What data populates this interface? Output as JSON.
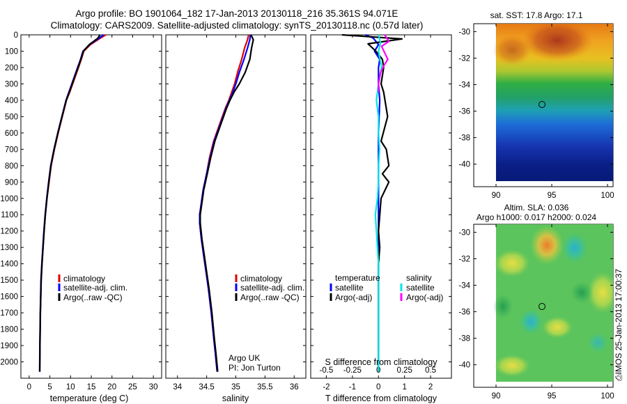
{
  "title": {
    "line1": "Argo profile: BO 1901064_182 17-Jan-2013 20130118_216 35.361S 94.071E",
    "line2": "Climatology: CARS2009. Satellite-adjusted climatology: synTS_20130118.nc (0.57d later)"
  },
  "credit": "Argo UK",
  "pi": "PI: Jon Turton",
  "timestamp": "⎙IMOS 25-Jan-2013 17:00:37",
  "colors": {
    "climatology": "#e00000",
    "satellite": "#0000ff",
    "argo": "#000000",
    "sal_satellite": "#00e5e5",
    "sal_argo": "#ff00ff"
  },
  "map_sst": {
    "title": "sat. SST: 17.8 Argo: 17.1",
    "xticks": [
      "90",
      "95",
      "100"
    ],
    "yticks": [
      "-30",
      "-32",
      "-34",
      "-36",
      "-38",
      "-40"
    ]
  },
  "map_sla": {
    "title_line1": "Altim. SLA: 0.036",
    "title_line2": "Argo h1000: 0.017 h2000: 0.024",
    "xticks": [
      "90",
      "95",
      "100"
    ],
    "yticks": [
      "-30",
      "-32",
      "-34",
      "-36",
      "-38",
      "-40"
    ]
  },
  "chart_data": [
    {
      "type": "line",
      "xlabel": "temperature (deg C)",
      "ylabel": "",
      "xlim": [
        -2,
        32
      ],
      "ylim": [
        2100,
        0
      ],
      "xticks": [
        "0",
        "5",
        "10",
        "15",
        "20",
        "25",
        "30"
      ],
      "yticks": [
        "0",
        "100",
        "200",
        "300",
        "400",
        "500",
        "600",
        "700",
        "800",
        "900",
        "1000",
        "1100",
        "1200",
        "1300",
        "1400",
        "1500",
        "1600",
        "1700",
        "1800",
        "1900",
        "2000"
      ],
      "legend": [
        "climatology",
        "satellite-adj. clim.",
        "Argo(..raw -QC)"
      ],
      "series": [
        {
          "name": "climatology",
          "color": "#e00000",
          "x": [
            18.5,
            17.2,
            14.8,
            13.2,
            12.6,
            11.9,
            11.2,
            10.5,
            9.8,
            9.0,
            8.0,
            7.0,
            6.1,
            5.3,
            4.8,
            4.3,
            3.9,
            3.6,
            3.35,
            3.1,
            2.9,
            2.7,
            2.6,
            2.55
          ],
          "y": [
            0,
            20,
            60,
            100,
            150,
            200,
            250,
            300,
            350,
            400,
            500,
            600,
            700,
            800,
            900,
            1000,
            1100,
            1200,
            1300,
            1400,
            1500,
            1700,
            1900,
            2060
          ]
        },
        {
          "name": "satellite-adj. clim.",
          "color": "#0000ff",
          "x": [
            18.0,
            16.9,
            14.6,
            13.0,
            12.4,
            11.7,
            11.0,
            10.3,
            9.6,
            8.9,
            7.9,
            6.9,
            6.0,
            5.2,
            4.7,
            4.25,
            3.85,
            3.55,
            3.3,
            3.05,
            2.85,
            2.68,
            2.58,
            2.52
          ],
          "y": [
            0,
            20,
            60,
            100,
            150,
            200,
            250,
            300,
            350,
            400,
            500,
            600,
            700,
            800,
            900,
            1000,
            1100,
            1200,
            1300,
            1400,
            1500,
            1700,
            1900,
            2060
          ]
        },
        {
          "name": "Argo(..raw -QC)",
          "color": "#000000",
          "x": [
            17.1,
            16.6,
            14.5,
            13.1,
            12.5,
            11.8,
            11.1,
            10.4,
            9.7,
            8.95,
            7.95,
            6.95,
            6.05,
            5.25,
            4.75,
            4.3,
            3.9,
            3.6,
            3.35,
            3.1,
            2.9,
            2.72,
            2.62,
            2.56
          ],
          "y": [
            0,
            20,
            60,
            100,
            150,
            200,
            250,
            300,
            350,
            400,
            500,
            600,
            700,
            800,
            900,
            1000,
            1100,
            1200,
            1300,
            1400,
            1500,
            1700,
            1900,
            2060
          ]
        }
      ]
    },
    {
      "type": "line",
      "xlabel": "salinity",
      "ylabel": "",
      "xlim": [
        33.8,
        36.2
      ],
      "ylim": [
        2100,
        0
      ],
      "xticks": [
        "34",
        "34.5",
        "35",
        "35.5",
        "36"
      ],
      "yticks": [],
      "legend": [
        "climatology",
        "satellite-adj. clim.",
        "Argo(..raw -QC)"
      ],
      "series": [
        {
          "name": "climatology",
          "color": "#e00000",
          "x": [
            35.22,
            35.2,
            35.15,
            35.1,
            35.03,
            34.98,
            34.93,
            34.88,
            34.82,
            34.72,
            34.62,
            34.55,
            34.5,
            34.44,
            34.4,
            34.38,
            34.38,
            34.41,
            34.45,
            34.49,
            34.53,
            34.58,
            34.62,
            34.65,
            34.68
          ],
          "y": [
            0,
            30,
            80,
            150,
            230,
            300,
            350,
            400,
            450,
            550,
            650,
            750,
            850,
            950,
            1050,
            1100,
            1150,
            1250,
            1350,
            1450,
            1550,
            1700,
            1850,
            1950,
            2060
          ]
        },
        {
          "name": "satellite-adj. clim.",
          "color": "#0000ff",
          "x": [
            35.25,
            35.24,
            35.2,
            35.14,
            35.06,
            35.0,
            34.95,
            34.89,
            34.83,
            34.73,
            34.63,
            34.56,
            34.5,
            34.44,
            34.4,
            34.38,
            34.38,
            34.41,
            34.45,
            34.49,
            34.53,
            34.58,
            34.62,
            34.65,
            34.68
          ],
          "y": [
            0,
            30,
            80,
            150,
            230,
            300,
            350,
            400,
            450,
            550,
            650,
            750,
            850,
            950,
            1050,
            1100,
            1150,
            1250,
            1350,
            1450,
            1550,
            1700,
            1850,
            1950,
            2060
          ]
        },
        {
          "name": "Argo(..raw -QC)",
          "color": "#000000",
          "x": [
            35.26,
            35.3,
            35.27,
            35.24,
            35.16,
            35.06,
            34.97,
            34.9,
            34.84,
            34.74,
            34.64,
            34.57,
            34.51,
            34.45,
            34.41,
            34.39,
            34.39,
            34.42,
            34.46,
            34.5,
            34.54,
            34.59,
            34.63,
            34.66,
            34.69
          ],
          "y": [
            0,
            30,
            80,
            150,
            230,
            300,
            350,
            400,
            450,
            550,
            650,
            750,
            850,
            950,
            1050,
            1100,
            1150,
            1250,
            1350,
            1450,
            1550,
            1700,
            1850,
            1950,
            2060
          ]
        }
      ]
    },
    {
      "type": "line",
      "xlabel": "T difference from climatology",
      "x2label": "S difference from climatology",
      "ylabel": "",
      "xlim": [
        -2.6,
        2.8
      ],
      "ylim": [
        2100,
        0
      ],
      "xticks": [
        "-2",
        "-1",
        "0",
        "1",
        "2"
      ],
      "x2ticks": [
        "-0.5",
        "-0.25",
        "0",
        "0.25",
        "0.5"
      ],
      "yticks": [],
      "legend_temperature": [
        "temperature",
        "satellite",
        "Argo(-adj)"
      ],
      "legend_salinity": [
        "salinity",
        "satellite",
        "Argo(-adj)"
      ],
      "series": [
        {
          "name": "temperature satellite",
          "color": "#0000ff",
          "x": [
            -0.5,
            -0.2,
            0.0,
            -0.15,
            0.05,
            0.0,
            0.0,
            0.05,
            0.0,
            0.0,
            0.0,
            0.0,
            0.0,
            0.0,
            0.0,
            0.0
          ],
          "y": [
            0,
            20,
            60,
            100,
            150,
            200,
            300,
            400,
            600,
            800,
            1000,
            1200,
            1400,
            1600,
            1800,
            2060
          ]
        },
        {
          "name": "temperature Argo(-adj)",
          "color": "#000000",
          "x": [
            -1.4,
            0.9,
            -0.4,
            -0.1,
            0.15,
            0.2,
            0.1,
            0.2,
            0.35,
            0.1,
            0.3,
            0.4,
            0.15,
            0.4,
            0.1,
            0.0,
            0.05,
            0.0,
            0.0,
            0.0,
            0.0,
            0.0,
            0.0
          ],
          "y": [
            0,
            25,
            55,
            100,
            150,
            200,
            300,
            350,
            500,
            650,
            700,
            800,
            850,
            900,
            1000,
            1200,
            1300,
            1400,
            1500,
            1600,
            1800,
            1900,
            2060
          ]
        },
        {
          "name": "salinity satellite",
          "color": "#00e5e5",
          "x": [
            0.0,
            0.02,
            0.0,
            0.03,
            0.0,
            -0.02,
            0.0,
            0.0,
            0.01,
            0.0,
            0.0,
            -0.01,
            -0.03,
            -0.02,
            0.0,
            0.0,
            0.0,
            0.0
          ],
          "y": [
            0,
            50,
            100,
            200,
            300,
            400,
            500,
            600,
            700,
            800,
            900,
            1000,
            1100,
            1200,
            1400,
            1600,
            1800,
            2060
          ]
        },
        {
          "name": "salinity Argo(-adj)",
          "color": "#ff00ff",
          "x": [
            0.06,
            0.1,
            0.03,
            0.06,
            0.09,
            0.05,
            0.02,
            0.0,
            0.0
          ],
          "y": [
            0,
            40,
            70,
            110,
            150,
            190,
            230,
            300,
            350
          ]
        }
      ]
    }
  ]
}
